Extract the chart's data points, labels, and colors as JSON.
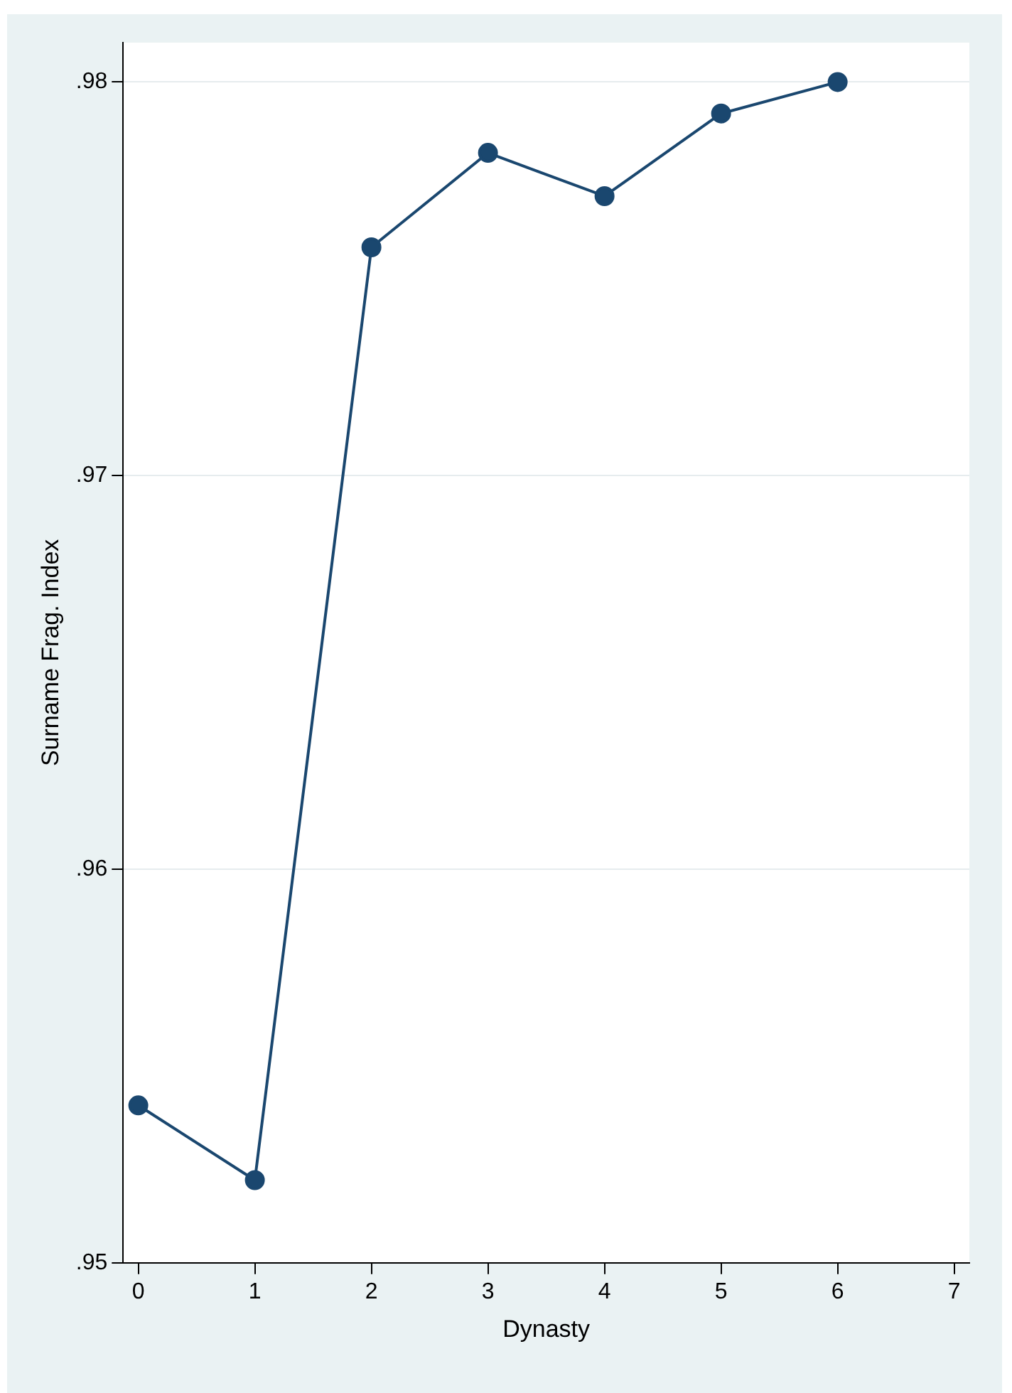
{
  "chart_data": {
    "type": "line",
    "xlabel": "Dynasty",
    "ylabel": "Surname Frag. Index",
    "x": [
      0,
      1,
      2,
      3,
      4,
      5,
      6
    ],
    "series": [
      {
        "color": "#1a476f",
        "values": [
          0.954,
          0.9521,
          0.9758,
          0.9782,
          0.9771,
          0.9792,
          0.98
        ]
      }
    ],
    "xlim": [
      -0.13,
      7.13
    ],
    "ylim": [
      0.95,
      0.981
    ],
    "xticks": [
      0,
      1,
      2,
      3,
      4,
      5,
      6,
      7
    ],
    "yticks": [
      {
        "value": 0.95,
        "label": ".95"
      },
      {
        "value": 0.96,
        "label": ".96"
      },
      {
        "value": 0.97,
        "label": ".97"
      },
      {
        "value": 0.98,
        "label": ".98"
      }
    ],
    "grid": "y",
    "marker": "circle",
    "line_style": "solid"
  }
}
